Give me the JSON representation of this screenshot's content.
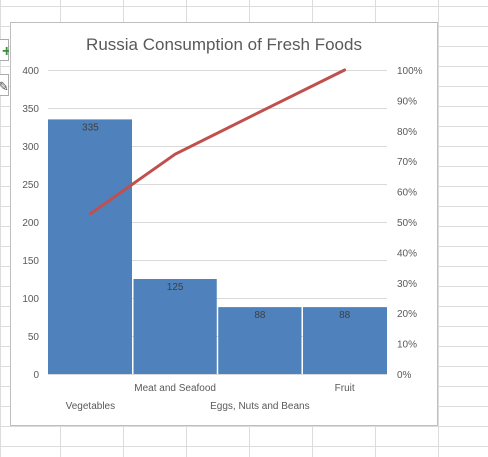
{
  "chart_data": {
    "type": "bar",
    "title": "Russia Consumption of Fresh Foods",
    "categories": [
      "Vegetables",
      "Meat and Seafood",
      "Eggs, Nuts and Beans",
      "Fruit"
    ],
    "values": [
      335,
      125,
      88,
      88
    ],
    "data_labels": [
      "335",
      "125",
      "88",
      "88"
    ],
    "cumulative_percent": [
      52.7,
      72.3,
      86.2,
      100
    ],
    "ylim": [
      0,
      400
    ],
    "yticks": [
      "0",
      "50",
      "100",
      "150",
      "200",
      "250",
      "300",
      "350",
      "400"
    ],
    "y2lim": [
      0,
      1
    ],
    "y2ticks": [
      "0%",
      "10%",
      "20%",
      "30%",
      "40%",
      "50%",
      "60%",
      "70%",
      "80%",
      "90%",
      "100%"
    ],
    "grid": true,
    "legend": "none",
    "colors": {
      "bar": "#4f81bd",
      "line": "#c0504d",
      "grid": "#d9d9d9",
      "text": "#595959",
      "sheet_grid": "#dadcdd"
    }
  },
  "ui": {
    "plus_icon_glyph": "+",
    "brush_icon_glyph": "✎"
  }
}
